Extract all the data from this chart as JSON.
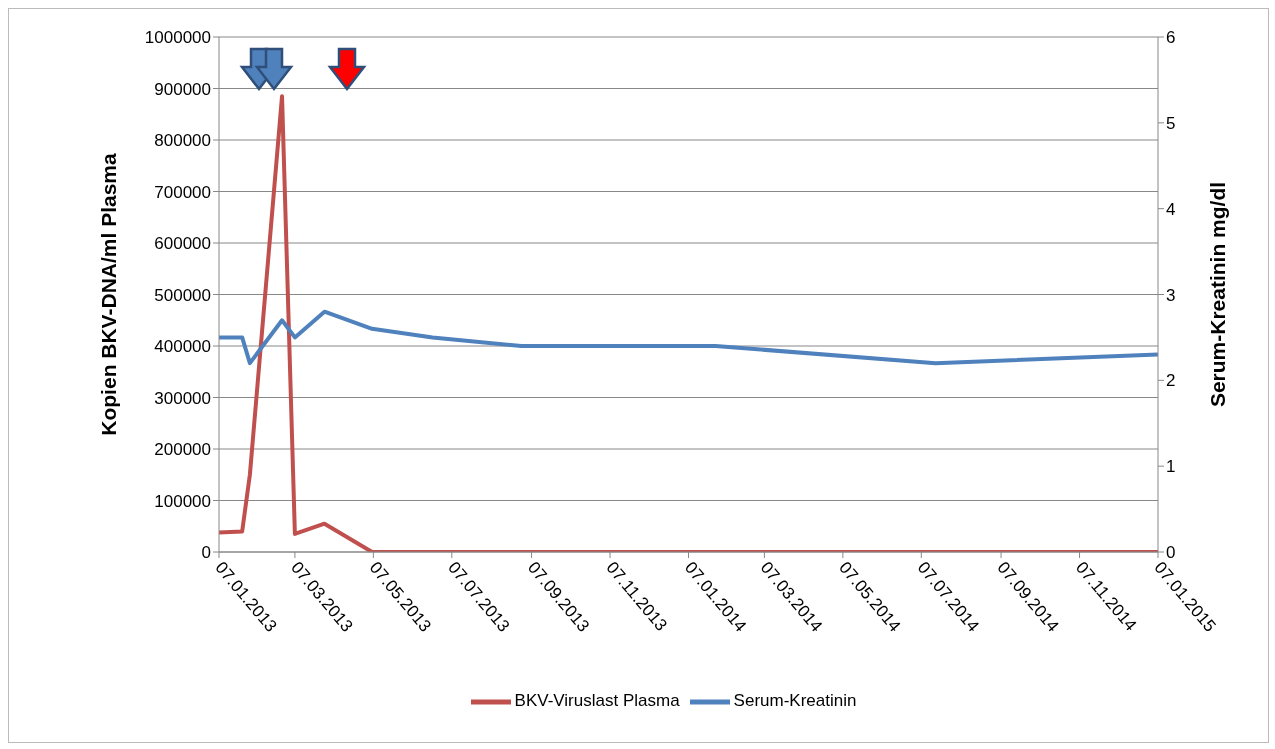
{
  "chart_data": {
    "type": "line",
    "ylabel": "Kopien BKV-DNA/ml Plasma",
    "y2label": "Serum-Kreatinin mg/dl",
    "series": [
      {
        "name": "BKV-Viruslast Plasma",
        "color": "#c0504d",
        "x": [
          "2013-01-07",
          "2013-01-25",
          "2013-01-31",
          "2013-02-25",
          "2013-03-07",
          "2013-03-30",
          "2013-05-06",
          "2013-08-30",
          "2014-01-28",
          "2014-07-18",
          "2015-01-07"
        ],
        "values": [
          38000,
          40000,
          150000,
          885000,
          35000,
          55000,
          0,
          0,
          0,
          0,
          0
        ]
      },
      {
        "name": "Serum-Kreatinin",
        "color": "#4f81bd",
        "axis": "y2",
        "x": [
          "2013-01-07",
          "2013-01-25",
          "2013-01-31",
          "2013-02-25",
          "2013-03-07",
          "2013-03-30",
          "2013-05-06",
          "2013-06-22",
          "2013-08-30",
          "2014-01-28",
          "2014-07-18",
          "2015-01-07"
        ],
        "values": [
          2.5,
          2.5,
          2.2,
          2.7,
          2.5,
          2.8,
          2.6,
          2.5,
          2.4,
          2.4,
          2.2,
          2.3
        ]
      }
    ],
    "xlim": [
      "2013-01-07",
      "2015-01-07"
    ],
    "xticks": [
      {
        "value": "2013-01-07",
        "label": "07.01.2013"
      },
      {
        "value": "2013-03-07",
        "label": "07.03.2013"
      },
      {
        "value": "2013-05-07",
        "label": "07.05.2013"
      },
      {
        "value": "2013-07-07",
        "label": "07.07.2013"
      },
      {
        "value": "2013-09-07",
        "label": "07.09.2013"
      },
      {
        "value": "2013-11-07",
        "label": "07.11.2013"
      },
      {
        "value": "2014-01-07",
        "label": "07.01.2014"
      },
      {
        "value": "2014-03-07",
        "label": "07.03.2014"
      },
      {
        "value": "2014-05-07",
        "label": "07.05.2014"
      },
      {
        "value": "2014-07-07",
        "label": "07.07.2014"
      },
      {
        "value": "2014-09-07",
        "label": "07.09.2014"
      },
      {
        "value": "2014-11-07",
        "label": "07.11.2014"
      },
      {
        "value": "2015-01-07",
        "label": "07.01.2015"
      }
    ],
    "ylim": [
      0,
      1000000
    ],
    "yticks": [
      0,
      100000,
      200000,
      300000,
      400000,
      500000,
      600000,
      700000,
      800000,
      900000,
      1000000
    ],
    "y2lim": [
      0,
      6
    ],
    "y2ticks": [
      0,
      1,
      2,
      3,
      4,
      5,
      6
    ],
    "grid": "y",
    "legend": "bottom",
    "marker": "none",
    "line_style": "solid"
  }
}
